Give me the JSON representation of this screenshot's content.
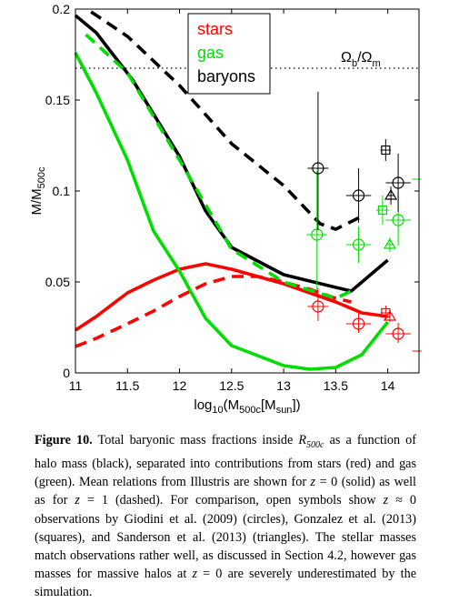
{
  "chart_data": {
    "type": "line",
    "xlabel": "log",
    "xlabel_sub": "10",
    "xlabel_rest": "(M",
    "xlabel_sub2": "500c",
    "xlabel_rest2": "[M",
    "xlabel_sub3": "sun",
    "xlabel_rest3": "])",
    "ylabel": "M/M",
    "ylabel_sub": "500c",
    "xlim": [
      11,
      14.3
    ],
    "ylim": [
      0,
      0.2
    ],
    "x_ticks": [
      11,
      11.5,
      12,
      12.5,
      13,
      13.5,
      14
    ],
    "x_tick_labels": [
      "11",
      "11.5",
      "12",
      "12.5",
      "13",
      "13.5",
      "14"
    ],
    "y_ticks": [
      0,
      0.05,
      0.1,
      0.15,
      0.2
    ],
    "y_tick_labels": [
      "0",
      "0.05",
      "0.1",
      "0.15",
      "0.2"
    ],
    "legend": {
      "placement": "top-center",
      "entries": [
        {
          "label": "stars",
          "color": "#ff0000"
        },
        {
          "label": "gas",
          "color": "#00dd00"
        },
        {
          "label": "baryons",
          "color": "#000000"
        }
      ]
    },
    "reference_line": {
      "y": 0.1675,
      "style": "dotted",
      "label_main": "Ω",
      "label_sub": "b",
      "label_slash": "/Ω",
      "label_sub2": "m"
    },
    "series": [
      {
        "key": "baryons_z0",
        "color": "#000000",
        "style": "solid",
        "x": [
          11.0,
          11.2,
          11.55,
          12.0,
          12.25,
          12.5,
          13.0,
          13.5,
          13.65,
          14.0
        ],
        "y": [
          0.1965,
          0.187,
          0.161,
          0.119,
          0.089,
          0.069,
          0.054,
          0.047,
          0.045,
          0.062
        ]
      },
      {
        "key": "baryons_z1",
        "color": "#000000",
        "style": "dashed",
        "x": [
          11.15,
          11.5,
          12.0,
          12.5,
          13.0,
          13.35,
          13.5,
          13.75
        ],
        "y": [
          0.1985,
          0.185,
          0.158,
          0.126,
          0.103,
          0.082,
          0.079,
          0.086
        ]
      },
      {
        "key": "stars_z0",
        "color": "#ff0000",
        "style": "solid",
        "x": [
          11.0,
          11.2,
          11.5,
          11.75,
          12.0,
          12.25,
          12.5,
          13.0,
          13.5,
          13.75,
          14.0
        ],
        "y": [
          0.0235,
          0.031,
          0.044,
          0.051,
          0.057,
          0.06,
          0.057,
          0.049,
          0.039,
          0.033,
          0.031
        ]
      },
      {
        "key": "stars_z1",
        "color": "#ff0000",
        "style": "dashed",
        "x": [
          11.0,
          11.2,
          11.5,
          11.75,
          12.0,
          12.25,
          12.5,
          12.75,
          13.0,
          13.25,
          13.5,
          13.65
        ],
        "y": [
          0.0145,
          0.019,
          0.027,
          0.034,
          0.042,
          0.049,
          0.053,
          0.053,
          0.05,
          0.046,
          0.041,
          0.039
        ]
      },
      {
        "key": "gas_z0",
        "color": "#00dd00",
        "style": "solid",
        "x": [
          11.0,
          11.2,
          11.5,
          11.75,
          12.0,
          12.25,
          12.5,
          13.0,
          13.25,
          13.5,
          13.75,
          14.0
        ],
        "y": [
          0.176,
          0.154,
          0.117,
          0.078,
          0.056,
          0.03,
          0.015,
          0.004,
          0.002,
          0.003,
          0.01,
          0.028
        ]
      },
      {
        "key": "gas_z1",
        "color": "#00dd00",
        "style": "dashed",
        "x": [
          11.1,
          11.5,
          12.0,
          12.5,
          13.0,
          13.5,
          13.65
        ],
        "y": [
          0.186,
          0.165,
          0.117,
          0.068,
          0.05,
          0.041,
          0.045
        ]
      }
    ],
    "observations": [
      {
        "set": "Giodini et al. (2009)",
        "marker": "circle",
        "color": "#ff0000",
        "x": 13.33,
        "y": 0.0365,
        "xerr": [
          0.1,
          0.1
        ],
        "yerr": [
          0.008,
          0.01
        ]
      },
      {
        "set": "Giodini et al. (2009)",
        "marker": "circle",
        "color": "#ff0000",
        "x": 13.72,
        "y": 0.027,
        "xerr": [
          0.12,
          0.12
        ],
        "yerr": [
          0.005,
          0.006
        ]
      },
      {
        "set": "Giodini et al. (2009)",
        "marker": "circle",
        "color": "#ff0000",
        "x": 14.1,
        "y": 0.0215,
        "xerr": [
          0.12,
          0.12
        ],
        "yerr": [
          0.005,
          0.006
        ]
      },
      {
        "set": "Giodini et al. (2009)",
        "marker": "circle",
        "color": "#00dd00",
        "x": 13.32,
        "y": 0.076,
        "xerr": [
          0.1,
          0.1
        ],
        "yerr": [
          0.03,
          0.035
        ]
      },
      {
        "set": "Giodini et al. (2009)",
        "marker": "circle",
        "color": "#00dd00",
        "x": 13.72,
        "y": 0.0705,
        "xerr": [
          0.12,
          0.12
        ],
        "yerr": [
          0.01,
          0.01
        ]
      },
      {
        "set": "Giodini et al. (2009)",
        "marker": "circle",
        "color": "#00dd00",
        "x": 14.1,
        "y": 0.084,
        "xerr": [
          0.12,
          0.12
        ],
        "yerr": [
          0.014,
          0.014
        ]
      },
      {
        "set": "Giodini et al. (2009)",
        "marker": "circle",
        "color": "#000000",
        "x": 13.33,
        "y": 0.1125,
        "xerr": [
          0.1,
          0.1
        ],
        "yerr": [
          0.034,
          0.042
        ]
      },
      {
        "set": "Giodini et al. (2009)",
        "marker": "circle",
        "color": "#000000",
        "x": 13.72,
        "y": 0.0975,
        "xerr": [
          0.12,
          0.12
        ],
        "yerr": [
          0.015,
          0.015
        ]
      },
      {
        "set": "Giodini et al. (2009)",
        "marker": "circle",
        "color": "#000000",
        "x": 14.1,
        "y": 0.1045,
        "xerr": [
          0.12,
          0.12
        ],
        "yerr": [
          0.016,
          0.016
        ]
      },
      {
        "set": "Gonzalez et al. (2013)",
        "marker": "square",
        "color": "#ff0000",
        "x": 13.98,
        "y": 0.033,
        "xerr": [
          0.05,
          0.05
        ],
        "yerr": [
          0.004,
          0.004
        ]
      },
      {
        "set": "Gonzalez et al. (2013)",
        "marker": "square",
        "color": "#00dd00",
        "x": 13.95,
        "y": 0.0895,
        "xerr": [
          0.06,
          0.06
        ],
        "yerr": [
          0.008,
          0.008
        ]
      },
      {
        "set": "Gonzalez et al. (2013)",
        "marker": "square",
        "color": "#000000",
        "x": 13.98,
        "y": 0.1225,
        "xerr": [
          0.05,
          0.05
        ],
        "yerr": [
          0.006,
          0.006
        ]
      },
      {
        "set": "Sanderson et al. (2013)",
        "marker": "triangle",
        "color": "#ff0000",
        "x": 14.02,
        "y": 0.031,
        "xerr": [
          0.0,
          0.0
        ],
        "yerr": [
          0.003,
          0.003
        ]
      },
      {
        "set": "Sanderson et al. (2013)",
        "marker": "triangle",
        "color": "#00dd00",
        "x": 14.02,
        "y": 0.0705,
        "xerr": [
          0.03,
          0.03
        ],
        "yerr": [
          0.004,
          0.004
        ]
      },
      {
        "set": "Sanderson et al. (2013)",
        "marker": "triangle",
        "color": "#000000",
        "x": 14.03,
        "y": 0.0975,
        "xerr": [
          0.03,
          0.03
        ],
        "yerr": [
          0.005,
          0.005
        ]
      }
    ],
    "edge_marks": [
      {
        "color": "#00dd00",
        "x": 14.28,
        "y": 0.1065
      },
      {
        "color": "#ff0000",
        "x": 14.28,
        "y": 0.012
      }
    ]
  },
  "caption": {
    "label": "Figure 10.",
    "t1": " Total baryonic mass fractions inside ",
    "r": "R",
    "r_sub": "500c",
    "t2": " as a function of halo mass (black), separated into contributions from stars (red) and gas (green). Mean relations from Illustris are shown for ",
    "z0a": "z",
    "t3": " = 0 (solid) as well as for ",
    "z1": "z",
    "t4": " = 1 (dashed). For comparison, open symbols show ",
    "zapprox": "z",
    "t5": " ≈ 0 observations by Giodini et al. (2009) (circles), Gonzalez et al. (2013) (squares), and Sanderson et al. (2013) (triangles). The stellar masses match observations rather well, as discussed in Section 4.2, however gas masses for massive halos at ",
    "z0b": "z",
    "t6": " = 0 are severely underestimated by the simulation."
  }
}
